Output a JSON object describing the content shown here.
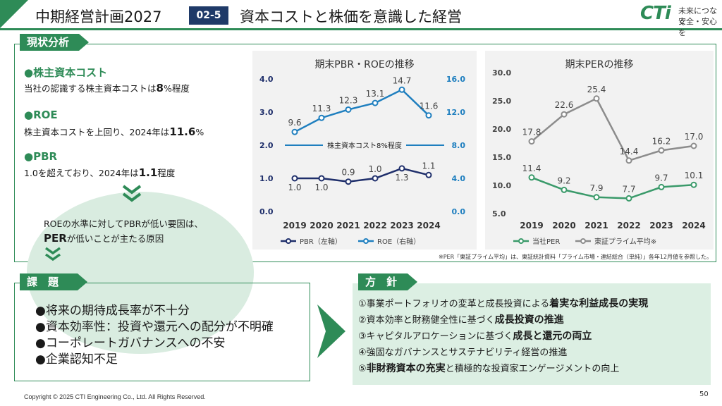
{
  "header": {
    "title": "中期経営計画2027",
    "badge": "02-5",
    "subtitle": "資本コストと株価を意識した経営",
    "logo": {
      "mark": "CTi",
      "line1": "未来につなぐ",
      "line2": "安全・安心を"
    }
  },
  "analysis": {
    "label": "現状分析",
    "items": [
      {
        "head": "●株主資本コスト",
        "pre": "当社の認識する株主資本コストは",
        "bold": "8",
        "post": "%程度"
      },
      {
        "head": "●ROE",
        "pre": "株主資本コストを上回り、2024年は",
        "bold": "11.6",
        "post": "%"
      },
      {
        "head": "●PBR",
        "pre": "1.0を超えており、2024年は",
        "bold": "1.1",
        "post": "程度"
      }
    ],
    "cause_line1": "ROEの水準に対してPBRが低い要因は、",
    "cause_bold": "PER",
    "cause_rest": "が低いことが主たる原因"
  },
  "chart_data": [
    {
      "type": "line",
      "title": "期末PBR・ROEの推移",
      "x": [
        "2019",
        "2020",
        "2021",
        "2022",
        "2023",
        "2024"
      ],
      "series": [
        {
          "name": "PBR（左軸）",
          "axis": "left",
          "values": [
            1.0,
            1.0,
            0.9,
            1.0,
            1.3,
            1.1
          ],
          "labels": [
            "1.0",
            "1.0",
            "0.9",
            "1.0",
            "1.3",
            "1.1"
          ],
          "color": "#1f2f6b"
        },
        {
          "name": "ROE（右軸）",
          "axis": "right",
          "values": [
            9.6,
            11.3,
            12.3,
            13.1,
            14.7,
            11.6
          ],
          "labels": [
            "9.6",
            "11.3",
            "12.3",
            "13.1",
            "14.7",
            "11.6"
          ],
          "color": "#1f7fbf"
        }
      ],
      "reference_line": {
        "label": "株主資本コスト8%程度",
        "value_right_axis": 8.0
      },
      "y_left": {
        "ticks": [
          "0.0",
          "1.0",
          "2.0",
          "3.0",
          "4.0"
        ],
        "ylim": [
          0,
          4
        ]
      },
      "y_right": {
        "ticks": [
          "0.0",
          "4.0",
          "8.0",
          "12.0",
          "16.0"
        ],
        "ylim": [
          0,
          16
        ]
      },
      "legend": "bottom",
      "grid": false
    },
    {
      "type": "line",
      "title": "期末PERの推移",
      "x": [
        "2019",
        "2020",
        "2021",
        "2022",
        "2023",
        "2024"
      ],
      "series": [
        {
          "name": "当社PER",
          "values": [
            11.4,
            9.2,
            7.9,
            7.7,
            9.7,
            10.1
          ],
          "labels": [
            "11.4",
            "9.2",
            "7.9",
            "7.7",
            "9.7",
            "10.1"
          ],
          "color": "#3a9a6a"
        },
        {
          "name": "東証プライム平均※",
          "values": [
            17.8,
            22.6,
            25.4,
            14.4,
            16.2,
            17.0
          ],
          "labels": [
            "17.8",
            "22.6",
            "25.4",
            "14.4",
            "16.2",
            "17.0"
          ],
          "color": "#8c8c8c"
        }
      ],
      "y": {
        "ticks": [
          "5.0",
          "10.0",
          "15.0",
          "20.0",
          "25.0",
          "30.0"
        ],
        "ylim": [
          5,
          30
        ]
      },
      "legend": "bottom",
      "grid": false
    }
  ],
  "note": "※PER「東証プライム平均」は、東証統計資料「プライム市場・連結総合（単純）」各年12月値を参照した。",
  "issues": {
    "label": "課　題",
    "items": [
      "●将来の期待成長率が不十分",
      "●資本効率性：投資や還元への配分が不明確",
      "●コーポレートガバナンスへの不安",
      "●企業認知不足"
    ]
  },
  "policy": {
    "label": "方　針",
    "items": [
      {
        "pre": "①事業ポートフォリオの変革と成長投資による",
        "bold": "着実な利益成長の実現",
        "post": ""
      },
      {
        "pre": "②資本効率と財務健全性に基づく",
        "bold": "成長投資の推進",
        "post": ""
      },
      {
        "pre": "③キャピタルアロケーションに基づく",
        "bold": "成長と還元の両立",
        "post": ""
      },
      {
        "pre": "④強固なガバナンスとサステナビリティ経営の推進",
        "bold": "",
        "post": ""
      },
      {
        "pre": "⑤",
        "bold": "非財務資本の充実",
        "post": "と積極的な投資家エンゲージメントの向上"
      }
    ]
  },
  "footer": {
    "copyright": "Copyright © 2025 CTI Engineering Co., Ltd. All Rights Reserved.",
    "page": "50"
  }
}
